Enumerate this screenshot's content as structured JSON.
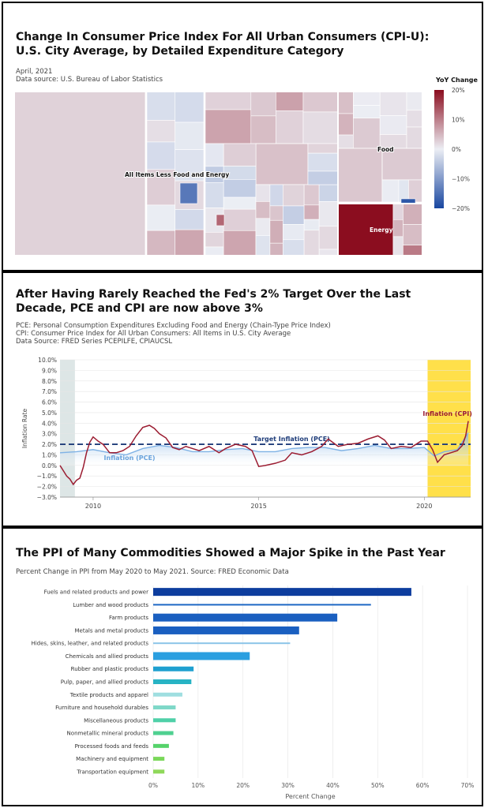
{
  "panels": {
    "cpi_treemap": {
      "title": "Change In Consumer Price Index For All Urban Consumers (CPI-U): U.S. City Average, by Detailed Expenditure Category",
      "date": "April, 2021",
      "source": "Data source: U.S. Bureau of Labor Statistics"
    },
    "inflation_line": {
      "title": "After Having Rarely Reached the Fed's 2% Target Over the Last Decade, PCE and CPI are now above 3%",
      "notes": [
        "PCE: Personal Consumption Expenditures Excluding Food and Energy (Chain-Type Price Index)",
        "CPI: Consumer Price Index for All Urban Consumers: All Items in U.S. City Average",
        "Data Source: FRED Series PCEPILFE, CPIAUCSL"
      ]
    },
    "ppi_bars": {
      "title": "The PPI of Many Commodities Showed a Major Spike in the Past Year",
      "subtitle": "Percent Change in PPI from May 2020 to May 2021. Source: FRED Economic Data"
    }
  },
  "colors": {
    "cpi_line": "#9b1c31",
    "pce_line": "#7fb2e5",
    "target_line": "#1f3d7a",
    "recession_band": "#dde6e6",
    "highlight_band": "#ffe04a",
    "energy": "#8b0d1f"
  },
  "chart_data": [
    {
      "type": "heatmap",
      "subtype": "treemap",
      "color_scale": {
        "title": "YoY Change",
        "ticks": [
          "20%",
          "10%",
          "0%",
          "−10%",
          "−20%"
        ],
        "min": -20,
        "max": 20
      },
      "groups": [
        {
          "label": "All Items Less Food and Energy",
          "yoy_change": 2.0
        },
        {
          "label": "Food",
          "yoy_change": 3.0
        },
        {
          "label": "Energy",
          "yoy_change": 25.0
        }
      ]
    },
    {
      "type": "line",
      "ylabel": "Inflation Rate",
      "ylim": [
        -3.0,
        10.0
      ],
      "y_ticks": [
        "10.0%",
        "9.0%",
        "8.0%",
        "7.0%",
        "6.0%",
        "5.0%",
        "4.0%",
        "3.0%",
        "2.0%",
        "1.0%",
        "0.0%",
        "−1.0%",
        "−2.0%",
        "−3.0%"
      ],
      "x_ticks": [
        "2010",
        "2015",
        "2020"
      ],
      "xlim": [
        2009.0,
        2021.4
      ],
      "target": {
        "label": "Target Inflation (PCE)",
        "value": 2.0
      },
      "shaded_periods": [
        [
          2009.0,
          2009.45
        ],
        [
          2020.1,
          2021.4
        ]
      ],
      "series": [
        {
          "name": "Inflation (CPI)",
          "x": [
            2009.0,
            2009.1,
            2009.2,
            2009.3,
            2009.4,
            2009.5,
            2009.6,
            2009.7,
            2009.8,
            2009.9,
            2010.0,
            2010.15,
            2010.3,
            2010.5,
            2010.7,
            2010.9,
            2011.1,
            2011.3,
            2011.5,
            2011.7,
            2011.85,
            2012.0,
            2012.2,
            2012.4,
            2012.6,
            2012.8,
            2013.0,
            2013.2,
            2013.5,
            2013.8,
            2014.0,
            2014.3,
            2014.6,
            2014.8,
            2015.0,
            2015.2,
            2015.5,
            2015.8,
            2016.0,
            2016.3,
            2016.6,
            2016.9,
            2017.1,
            2017.4,
            2017.7,
            2018.0,
            2018.3,
            2018.6,
            2018.8,
            2019.0,
            2019.3,
            2019.6,
            2019.9,
            2020.1,
            2020.25,
            2020.4,
            2020.6,
            2020.8,
            2021.0,
            2021.15,
            2021.25,
            2021.33
          ],
          "y": [
            0.0,
            -0.5,
            -1.0,
            -1.3,
            -1.8,
            -1.4,
            -1.2,
            -0.2,
            1.2,
            2.2,
            2.7,
            2.3,
            2.0,
            1.2,
            1.2,
            1.4,
            1.8,
            2.8,
            3.6,
            3.8,
            3.5,
            3.0,
            2.6,
            1.7,
            1.5,
            1.8,
            1.6,
            1.4,
            1.8,
            1.2,
            1.6,
            2.0,
            1.8,
            1.4,
            -0.1,
            0.0,
            0.2,
            0.5,
            1.2,
            1.0,
            1.3,
            1.8,
            2.5,
            1.8,
            2.0,
            2.1,
            2.5,
            2.8,
            2.4,
            1.6,
            1.8,
            1.7,
            2.3,
            2.3,
            1.5,
            0.3,
            1.0,
            1.2,
            1.4,
            1.9,
            2.8,
            4.2
          ]
        },
        {
          "name": "Inflation (PCE)",
          "x": [
            2009.0,
            2009.5,
            2010.0,
            2010.5,
            2011.0,
            2011.5,
            2012.0,
            2012.5,
            2013.0,
            2013.5,
            2014.0,
            2014.5,
            2015.0,
            2015.5,
            2016.0,
            2016.5,
            2017.0,
            2017.5,
            2018.0,
            2018.5,
            2019.0,
            2019.5,
            2020.0,
            2020.3,
            2020.6,
            2021.0,
            2021.33
          ],
          "y": [
            1.2,
            1.3,
            1.5,
            1.2,
            1.0,
            1.6,
            1.9,
            1.7,
            1.3,
            1.3,
            1.5,
            1.6,
            1.3,
            1.3,
            1.6,
            1.7,
            1.7,
            1.4,
            1.6,
            1.9,
            1.6,
            1.6,
            1.7,
            0.9,
            1.3,
            1.5,
            3.1
          ]
        }
      ]
    },
    {
      "type": "bar",
      "orientation": "horizontal",
      "xlabel": "Percent Change",
      "xlim": [
        0,
        70
      ],
      "x_ticks": [
        "0%",
        "10%",
        "20%",
        "30%",
        "40%",
        "50%",
        "60%",
        "70%"
      ],
      "categories": [
        "Fuels and related products and power",
        "Lumber and wood products",
        "Farm products",
        "Metals and metal products",
        "Hides, skins, leather, and related products",
        "Chemicals and allied products",
        "Rubber and plastic products",
        "Pulp, paper, and allied products",
        "Textile products and apparel",
        "Furniture and household durables",
        "Miscellaneous products",
        "Nonmetallic mineral products",
        "Processed foods and feeds",
        "Machinery and equipment",
        "Transportation equipment"
      ],
      "values": [
        57.5,
        48.5,
        41.0,
        32.5,
        30.5,
        21.5,
        9.0,
        8.5,
        6.5,
        5.0,
        5.0,
        4.5,
        3.5,
        2.5,
        2.5
      ],
      "bar_colors": [
        "#0d3d9e",
        "#1e67c4",
        "#1a5fc0",
        "#1a5fc0",
        "#8bc4e8",
        "#2b9fe0",
        "#1fa0d0",
        "#27b3c4",
        "#9fdee0",
        "#7fd8c8",
        "#4fd0a8",
        "#4fd090",
        "#55d26a",
        "#7ad85a",
        "#8fd85a"
      ]
    }
  ]
}
